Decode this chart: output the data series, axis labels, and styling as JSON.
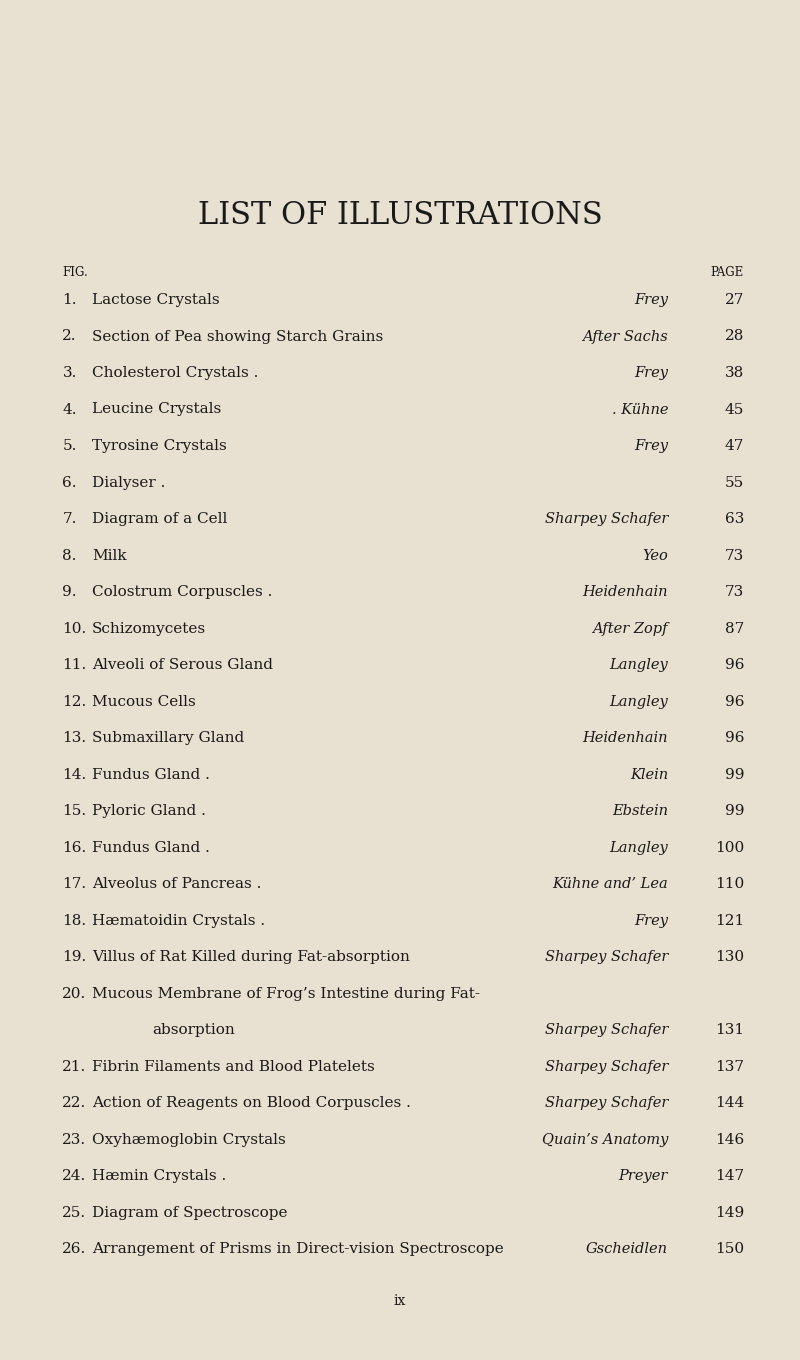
{
  "background_color": "#e8e0d0",
  "title": "LIST OF ILLUSTRATIONS",
  "title_fontsize": 22,
  "fig_label": "FIG.",
  "page_label": "PAGE",
  "text_color": "#1a1a1a",
  "entries": [
    {
      "num": "1",
      "title": "Lactose Crystals",
      "author": "Frey",
      "page": "27",
      "cont": null
    },
    {
      "num": "2",
      "title": "Section of Pea showing Starch Grains",
      "author": "After Sachs",
      "page": "28",
      "cont": null
    },
    {
      "num": "3",
      "title": "Cholesterol Crystals .",
      "author": "Frey",
      "page": "38",
      "cont": null
    },
    {
      "num": "4",
      "title": "Leucine Crystals",
      "author": ". Kühne",
      "page": "45",
      "cont": null
    },
    {
      "num": "5",
      "title": "Tyrosine Crystals",
      "author": "Frey",
      "page": "47",
      "cont": null
    },
    {
      "num": "6",
      "title": "Dialyser .",
      "author": "",
      "page": "55",
      "cont": null
    },
    {
      "num": "7",
      "title": "Diagram of a Cell",
      "author": "Sharpey Schafer",
      "page": "63",
      "cont": null
    },
    {
      "num": "8",
      "title": "Milk",
      "author": "Yeo",
      "page": "73",
      "cont": null
    },
    {
      "num": "9",
      "title": "Colostrum Corpuscles .",
      "author": "Heidenhain",
      "page": "73",
      "cont": null
    },
    {
      "num": "10",
      "title": "Schizomycetes",
      "author": "After Zopf",
      "page": "87",
      "cont": null
    },
    {
      "num": "11",
      "title": "Alveoli of Serous Gland",
      "author": "Langley",
      "page": "96",
      "cont": null
    },
    {
      "num": "12",
      "title": "Mucous Cells",
      "author": "Langley",
      "page": "96",
      "cont": null
    },
    {
      "num": "13",
      "title": "Submaxillary Gland",
      "author": "Heidenhain",
      "page": "96",
      "cont": null
    },
    {
      "num": "14",
      "title": "Fundus Gland .",
      "author": "Klein",
      "page": "99",
      "cont": null
    },
    {
      "num": "15",
      "title": "Pyloric Gland .",
      "author": "Ebstein",
      "page": "99",
      "cont": null
    },
    {
      "num": "16",
      "title": "Fundus Gland .",
      "author": "Langley",
      "page": "100",
      "cont": null
    },
    {
      "num": "17",
      "title": "Alveolus of Pancreas .",
      "author": "Kühne and’ Lea",
      "page": "110",
      "cont": null
    },
    {
      "num": "18",
      "title": "Hæmatoidin Crystals .",
      "author": "Frey",
      "page": "121",
      "cont": null
    },
    {
      "num": "19",
      "title": "Villus of Rat Killed during Fat-absorption",
      "author": "Sharpey Schafer",
      "page": "130",
      "cont": null
    },
    {
      "num": "20",
      "title": "Mucous Membrane of Frog’s Intestine during Fat-",
      "author": "",
      "page": "",
      "cont": {
        "text": "absorption",
        "author": "Sharpey Schafer",
        "page": "131"
      }
    },
    {
      "num": "21",
      "title": "Fibrin Filaments and Blood Platelets",
      "author": "Sharpey Schafer",
      "page": "137",
      "cont": null
    },
    {
      "num": "22",
      "title": "Action of Reagents on Blood Corpuscles .",
      "author": "Sharpey Schafer",
      "page": "144",
      "cont": null
    },
    {
      "num": "23",
      "title": "Oxyhæmoglobin Crystals",
      "author": "Quain’s Anatomy",
      "page": "146",
      "cont": null
    },
    {
      "num": "24",
      "title": "Hæmin Crystals .",
      "author": "Preyer",
      "page": "147",
      "cont": null
    },
    {
      "num": "25",
      "title": "Diagram of Spectroscope",
      "author": "",
      "page": "149",
      "cont": null
    },
    {
      "num": "26",
      "title": "Arrangement of Prisms in Direct-vision Spectroscope",
      "author": "Gscheidlen",
      "page": "150",
      "cont": null
    }
  ],
  "footer_text": "ix"
}
